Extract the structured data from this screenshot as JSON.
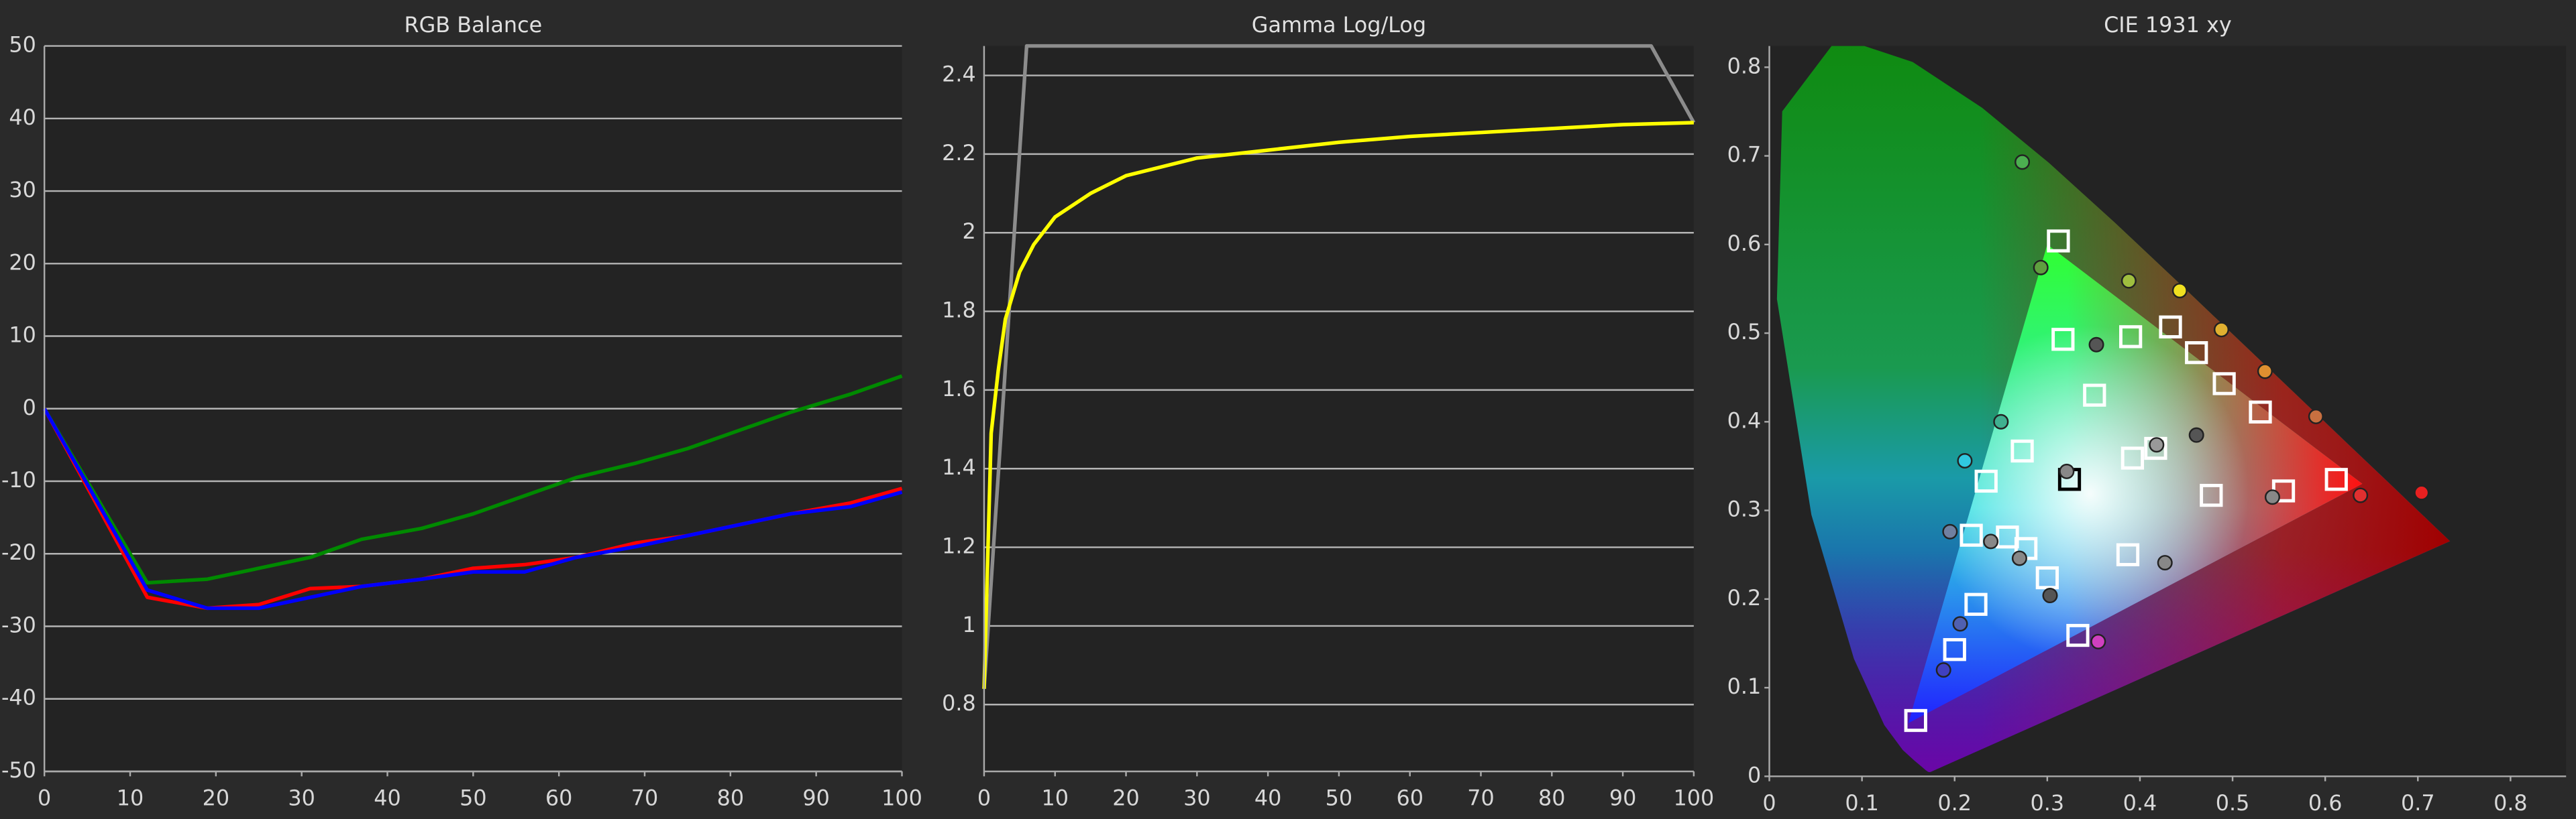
{
  "chart_data": [
    {
      "type": "line",
      "title": "RGB Balance",
      "x": [
        0,
        12,
        19,
        25,
        31,
        37,
        44,
        50,
        56,
        62,
        69,
        75,
        81,
        87,
        94,
        100
      ],
      "series": [
        {
          "color": "#008a00",
          "values": [
            0,
            -24,
            -23.5,
            -22,
            -20.5,
            -18,
            -16.5,
            -14.5,
            -12,
            -9.5,
            -7.5,
            -5.5,
            -3,
            -0.5,
            2,
            4.5
          ]
        },
        {
          "color": "#ff0000",
          "values": [
            0,
            -26,
            -27.5,
            -27,
            -24.8,
            -24.5,
            -23.5,
            -22,
            -21.5,
            -20.5,
            -18.5,
            -17.5,
            -16,
            -14.5,
            -13,
            -11
          ]
        },
        {
          "color": "#0000ff",
          "values": [
            0,
            -25,
            -27.5,
            -27.5,
            -26,
            -24.5,
            -23.5,
            -22.5,
            -22.5,
            -20.5,
            -19,
            -17.5,
            -16,
            -14.5,
            -13.5,
            -11.5
          ]
        }
      ],
      "xlim": [
        0,
        100
      ],
      "xticks": [
        0,
        10,
        20,
        30,
        40,
        50,
        60,
        70,
        80,
        90,
        100
      ],
      "ylim": [
        -50,
        50
      ],
      "yticks": [
        -50,
        -40,
        -30,
        -20,
        -10,
        0,
        10,
        20,
        30,
        40,
        50
      ],
      "grid": true
    },
    {
      "type": "line",
      "title": "Gamma Log/Log",
      "series": [
        {
          "color": "#8c8c8c",
          "x": [
            0,
            6,
            94,
            100
          ],
          "values": [
            0.84,
            2.475,
            2.475,
            2.28
          ]
        },
        {
          "color": "#ffff00",
          "x": [
            0,
            1,
            2,
            3,
            5,
            7,
            10,
            15,
            20,
            30,
            40,
            50,
            60,
            70,
            80,
            90,
            100
          ],
          "values": [
            0.84,
            1.49,
            1.65,
            1.78,
            1.9,
            1.97,
            2.04,
            2.1,
            2.145,
            2.19,
            2.21,
            2.23,
            2.245,
            2.255,
            2.265,
            2.275,
            2.28
          ]
        }
      ],
      "xlim": [
        0,
        100
      ],
      "xticks": [
        0,
        10,
        20,
        30,
        40,
        50,
        60,
        70,
        80,
        90,
        100
      ],
      "ylim": [
        0.63,
        2.475
      ],
      "yticks": [
        0.8,
        1,
        1.2,
        1.4,
        1.6,
        1.8,
        2,
        2.2,
        2.4
      ],
      "grid": true
    },
    {
      "type": "scatter",
      "title": "CIE 1931 xy",
      "spectral_locus": {
        "x": [
          0.1741,
          0.1738,
          0.1733,
          0.1726,
          0.1714,
          0.1689,
          0.1644,
          0.1566,
          0.144,
          0.1241,
          0.0913,
          0.0454,
          0.0082,
          0.0139,
          0.0743,
          0.1547,
          0.2296,
          0.3016,
          0.3731,
          0.4441,
          0.5125,
          0.5752,
          0.627,
          0.6658,
          0.6915,
          0.7079,
          0.719,
          0.726,
          0.7347
        ],
        "y": [
          0.005,
          0.005,
          0.0048,
          0.0048,
          0.0051,
          0.0069,
          0.0109,
          0.0177,
          0.0297,
          0.0578,
          0.1327,
          0.295,
          0.5384,
          0.7502,
          0.8338,
          0.8059,
          0.7543,
          0.6923,
          0.6245,
          0.5547,
          0.4866,
          0.4242,
          0.3725,
          0.334,
          0.3083,
          0.292,
          0.2809,
          0.274,
          0.2653
        ]
      },
      "gamut": {
        "x": [
          0.64,
          0.3,
          0.15
        ],
        "y": [
          0.33,
          0.6,
          0.06
        ]
      },
      "series": [
        {
          "marker": "square",
          "color": "#ffffff",
          "x": [
            0.312,
            0.317,
            0.39,
            0.433,
            0.461,
            0.491,
            0.53,
            0.351,
            0.273,
            0.234,
            0.392,
            0.417,
            0.477,
            0.555,
            0.612,
            0.218,
            0.257,
            0.277,
            0.3,
            0.223,
            0.2,
            0.387,
            0.333,
            0.158
          ],
          "y": [
            0.604,
            0.493,
            0.496,
            0.507,
            0.478,
            0.443,
            0.411,
            0.43,
            0.367,
            0.333,
            0.359,
            0.37,
            0.317,
            0.322,
            0.335,
            0.272,
            0.27,
            0.257,
            0.224,
            0.194,
            0.143,
            0.25,
            0.159,
            0.063
          ]
        },
        {
          "marker": "square",
          "color": "#000000",
          "x": [
            0.324
          ],
          "y": [
            0.335
          ]
        },
        {
          "marker": "circle",
          "x": [
            0.273,
            0.293,
            0.388,
            0.443,
            0.488,
            0.353,
            0.535,
            0.59,
            0.461,
            0.25,
            0.418,
            0.211,
            0.321,
            0.543,
            0.638,
            0.704,
            0.195,
            0.239,
            0.27,
            0.427,
            0.303,
            0.206,
            0.355,
            0.188
          ],
          "y": [
            0.693,
            0.574,
            0.559,
            0.548,
            0.504,
            0.487,
            0.457,
            0.406,
            0.385,
            0.4,
            0.374,
            0.356,
            0.344,
            0.315,
            0.317,
            0.32,
            0.276,
            0.265,
            0.246,
            0.241,
            0.204,
            0.172,
            0.152,
            0.12
          ],
          "colors": [
            "#4caf50",
            "#5f9f3f",
            "#9fbf3f",
            "#f0e020",
            "#e0b030",
            "#555555",
            "#e09030",
            "#c87040",
            "#555555",
            "#40b090",
            "#999999",
            "#30c8e0",
            "#888888",
            "#888888",
            "#e03030",
            "#e82020",
            "#7080a0",
            "#888888",
            "#888888",
            "#888888",
            "#555555",
            "#5060b0",
            "#d040c0",
            "#4040c0"
          ]
        }
      ],
      "xlim": [
        0,
        0.86
      ],
      "xticks": [
        0,
        0.1,
        0.2,
        0.3,
        0.4,
        0.5,
        0.6,
        0.7,
        0.8
      ],
      "ylim": [
        0,
        0.824
      ],
      "yticks": [
        0,
        0.1,
        0.2,
        0.3,
        0.4,
        0.5,
        0.6,
        0.7,
        0.8
      ],
      "grid": false
    }
  ]
}
